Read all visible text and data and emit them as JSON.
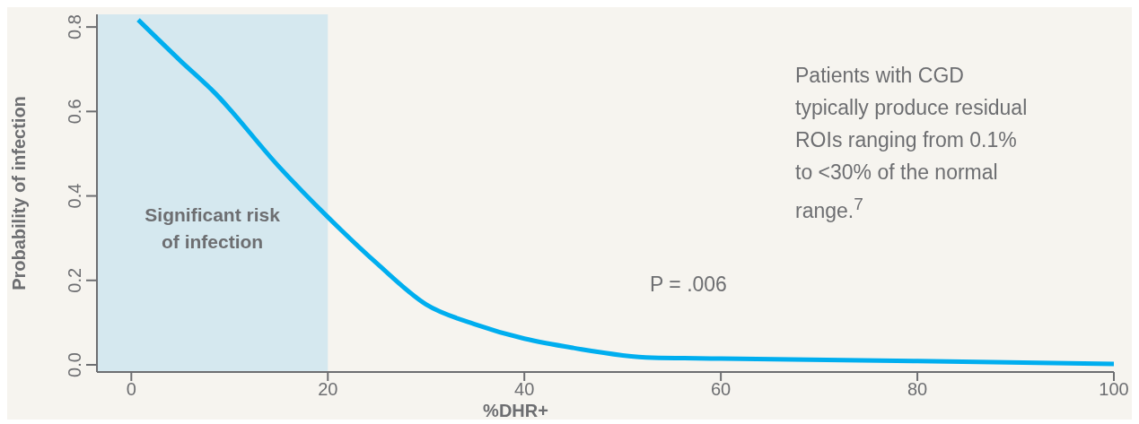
{
  "chart_data": {
    "type": "line",
    "xlabel": "%DHR+",
    "ylabel": "Probability of infection",
    "x": [
      0.7,
      5,
      8.5,
      15,
      20,
      25,
      30,
      35,
      40,
      45,
      53,
      60,
      80,
      100
    ],
    "series": [
      {
        "color": "#00aeef",
        "values": [
          0.817,
          0.72,
          0.644,
          0.47,
          0.35,
          0.24,
          0.143,
          0.096,
          0.062,
          0.04,
          0.017,
          0.015,
          0.009,
          0.002
        ]
      }
    ],
    "xlim": [
      -3.5,
      100
    ],
    "xticks": [
      0,
      20,
      40,
      60,
      80,
      100
    ],
    "ylim": [
      -0.017,
      0.83
    ],
    "yticks": [
      {
        "value": 0,
        "label": "0.0"
      },
      {
        "value": 0.2,
        "label": "0.2"
      },
      {
        "value": 0.4,
        "label": "0.4"
      },
      {
        "value": 0.6,
        "label": "0.6"
      },
      {
        "value": 0.8,
        "label": "0.8"
      }
    ],
    "bands": [
      {
        "axis": "x",
        "from": -3.5,
        "to": 20,
        "label": "Significant risk of infection",
        "color": "#d5e8ef"
      }
    ],
    "annotations": [
      "Patients with CGD typically produce residual ROIs ranging from 0.1% to <30% of the normal range.$^{7}$",
      "P = .006"
    ],
    "grid": false,
    "legend": false,
    "marker": "none",
    "line_style": "solid"
  }
}
